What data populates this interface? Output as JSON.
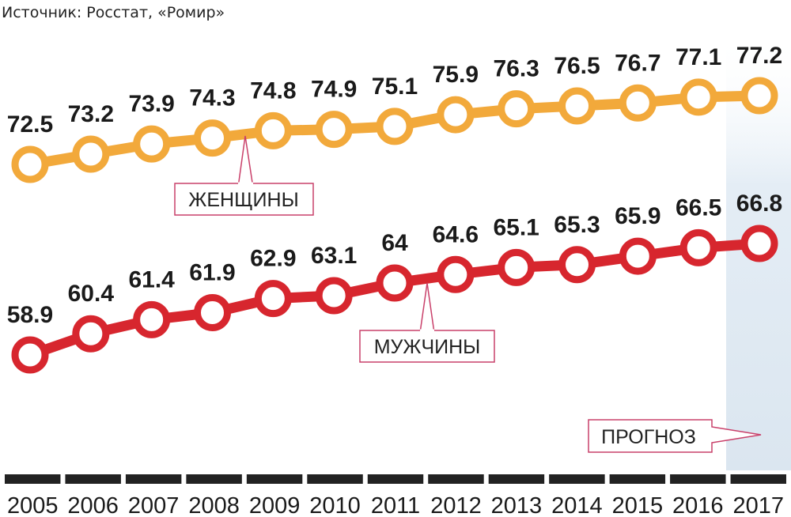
{
  "source": "Источник: Росстат, «Ромир»",
  "chart_data": {
    "type": "line",
    "x": [
      "2005",
      "2006",
      "2007",
      "2008",
      "2009",
      "2010",
      "2011",
      "2012",
      "2013",
      "2014",
      "2015",
      "2016",
      "2017"
    ],
    "series": [
      {
        "name": "ЖЕНЩИНЫ",
        "values": [
          72.5,
          73.2,
          73.9,
          74.3,
          74.8,
          74.9,
          75.1,
          75.9,
          76.3,
          76.5,
          76.7,
          77.1,
          77.2
        ],
        "labels": [
          "72.5",
          "73.2",
          "73.9",
          "74.3",
          "74.8",
          "74.9",
          "75.1",
          "75.9",
          "76.3",
          "76.5",
          "76.7",
          "77.1",
          "77.2"
        ],
        "color": "#f2a93b"
      },
      {
        "name": "МУЖЧИНЫ",
        "values": [
          58.9,
          60.4,
          61.4,
          61.9,
          62.9,
          63.1,
          64,
          64.6,
          65.1,
          65.3,
          65.9,
          66.5,
          66.8
        ],
        "labels": [
          "58.9",
          "60.4",
          "61.4",
          "61.9",
          "62.9",
          "63.1",
          "64",
          "64.6",
          "65.1",
          "65.3",
          "65.9",
          "66.5",
          "66.8"
        ],
        "color": "#d7262e"
      }
    ],
    "forecast_label": "ПРОГНОЗ",
    "forecast_from": "2017",
    "colors": {
      "women": "#f2a93b",
      "men": "#d7262e",
      "callout_border": "#c9406a",
      "forecast_bg": "#e4edf5",
      "axis": "#222222"
    }
  }
}
